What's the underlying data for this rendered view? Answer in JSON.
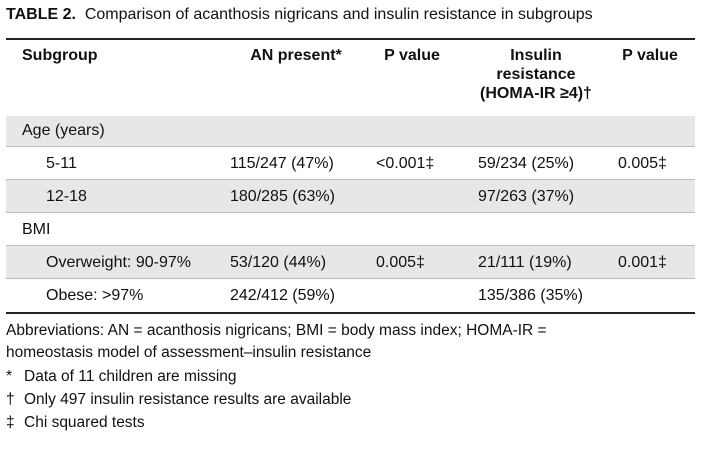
{
  "caption": {
    "label": "TABLE 2.",
    "title": "Comparison of acanthosis nigricans and insulin resistance in subgroups"
  },
  "headers": {
    "subgroup": "Subgroup",
    "an_present": "AN present*",
    "p_value_1": "P value",
    "insulin_line1": "Insulin",
    "insulin_line2": "resistance",
    "insulin_line3": "(HOMA-IR ≥4)†",
    "p_value_2": "P value"
  },
  "sections": [
    {
      "title": "Age (years)",
      "rows": [
        {
          "subgroup": "5-11",
          "an": "115/247 (47%)",
          "p1": "<0.001‡",
          "ir": "59/234 (25%)",
          "p2": "0.005‡"
        },
        {
          "subgroup": "12-18",
          "an": "180/285 (63%)",
          "p1": "",
          "ir": "97/263 (37%)",
          "p2": ""
        }
      ]
    },
    {
      "title": "BMI",
      "rows": [
        {
          "subgroup": "Overweight: 90-97%",
          "an": "53/120 (44%)",
          "p1": "0.005‡",
          "ir": "21/111 (19%)",
          "p2": "0.001‡"
        },
        {
          "subgroup": "Obese: >97%",
          "an": "242/412 (59%)",
          "p1": "",
          "ir": "135/386 (35%)",
          "p2": ""
        }
      ]
    }
  ],
  "footnotes": {
    "abbrev_line1": "Abbreviations: AN = acanthosis nigricans; BMI = body mass index; HOMA-IR =",
    "abbrev_line2": "homeostasis model of assessment–insulin resistance",
    "notes": [
      {
        "mark": "*",
        "text": "Data of 11 children are missing"
      },
      {
        "mark": "†",
        "text": "Only 497 insulin resistance results are available"
      },
      {
        "mark": "‡",
        "text": "Chi squared tests"
      }
    ]
  }
}
